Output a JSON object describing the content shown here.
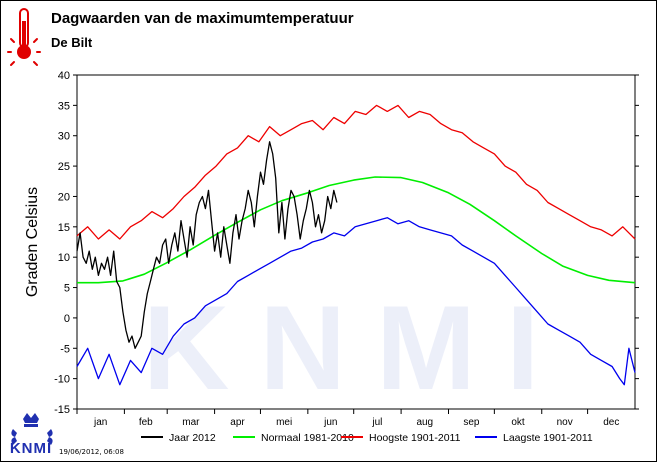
{
  "page": {
    "title": "Dagwaarden van de maximumtemperatuur",
    "subtitle": "De Bilt",
    "timestamp": "19/06/2012, 06:08",
    "logo_text": "KNMI",
    "watermark": "KNMI"
  },
  "chart_data": {
    "type": "line",
    "title": "Dagwaarden van de maximumtemperatuur",
    "subtitle": "De Bilt",
    "ylabel": "Graden Celsius",
    "xlabel": "",
    "ylim": [
      -15,
      40
    ],
    "yticks": [
      -15,
      -10,
      -5,
      0,
      5,
      10,
      15,
      20,
      25,
      30,
      35,
      40
    ],
    "xlim": [
      1,
      366
    ],
    "months": [
      "jan",
      "feb",
      "mar",
      "apr",
      "mei",
      "jun",
      "jul",
      "aug",
      "sep",
      "okt",
      "nov",
      "dec"
    ],
    "month_starts": [
      1,
      32,
      60,
      91,
      121,
      152,
      182,
      213,
      244,
      274,
      305,
      335
    ],
    "grid": false,
    "legend_position": "bottom",
    "series": [
      {
        "name": "Jaar 2012",
        "color": "#000000",
        "x": [
          1,
          3,
          5,
          7,
          9,
          11,
          13,
          15,
          17,
          19,
          21,
          23,
          25,
          27,
          29,
          31,
          33,
          35,
          37,
          39,
          41,
          43,
          45,
          47,
          49,
          51,
          53,
          55,
          57,
          59,
          61,
          63,
          65,
          67,
          69,
          71,
          73,
          75,
          77,
          79,
          81,
          83,
          85,
          87,
          89,
          91,
          93,
          95,
          97,
          99,
          101,
          103,
          105,
          107,
          109,
          111,
          113,
          115,
          117,
          119,
          121,
          123,
          125,
          127,
          129,
          131,
          133,
          135,
          137,
          139,
          141,
          143,
          145,
          147,
          149,
          151,
          153,
          155,
          157,
          159,
          161,
          163,
          165,
          167,
          169,
          171
        ],
        "values": [
          11,
          14,
          10,
          9,
          11,
          8,
          10,
          7,
          9,
          8,
          10,
          7,
          11,
          6,
          5,
          1,
          -2,
          -4,
          -3,
          -5,
          -4,
          -3,
          1,
          4,
          6,
          8,
          10,
          9,
          12,
          13,
          9,
          12,
          14,
          11,
          16,
          13,
          10,
          15,
          12,
          17,
          19,
          20,
          18,
          21,
          16,
          11,
          14,
          10,
          15,
          12,
          9,
          14,
          17,
          13,
          16,
          18,
          21,
          19,
          15,
          20,
          24,
          22,
          26,
          29,
          27,
          23,
          14,
          19,
          13,
          18,
          21,
          20,
          17,
          13,
          16,
          18,
          21,
          19,
          15,
          17,
          14,
          16,
          20,
          18,
          21,
          19
        ]
      },
      {
        "name": "Normaal 1981-2010",
        "color": "#00ee00",
        "x": [
          1,
          15,
          31,
          45,
          59,
          75,
          91,
          105,
          121,
          135,
          152,
          166,
          182,
          196,
          213,
          227,
          244,
          258,
          274,
          288,
          305,
          319,
          335,
          349,
          366
        ],
        "values": [
          5.8,
          5.8,
          6.1,
          7.2,
          9.0,
          11.2,
          13.6,
          15.6,
          17.8,
          19.3,
          20.6,
          21.8,
          22.7,
          23.2,
          23.1,
          22.3,
          20.6,
          18.7,
          16.0,
          13.5,
          10.6,
          8.5,
          7.0,
          6.2,
          5.8
        ]
      },
      {
        "name": "Hoogste 1901-2011",
        "color": "#ee0000",
        "x": [
          1,
          8,
          15,
          22,
          29,
          36,
          43,
          50,
          57,
          64,
          71,
          78,
          85,
          92,
          99,
          106,
          113,
          120,
          127,
          134,
          141,
          148,
          155,
          162,
          169,
          176,
          183,
          190,
          197,
          204,
          211,
          218,
          225,
          232,
          239,
          246,
          253,
          260,
          267,
          274,
          281,
          288,
          295,
          302,
          309,
          316,
          323,
          330,
          337,
          344,
          351,
          358,
          362,
          366
        ],
        "values": [
          13.5,
          15,
          13,
          14.5,
          13,
          15,
          16,
          17.5,
          16.5,
          18,
          20,
          21.5,
          23.5,
          25,
          27,
          28,
          30,
          29,
          31.5,
          30,
          31,
          32,
          32.5,
          31,
          33,
          32,
          34,
          33.5,
          35,
          34,
          35,
          33,
          34,
          33.5,
          32,
          31,
          30.5,
          29,
          28,
          27,
          25,
          24,
          22,
          21,
          19,
          18,
          17,
          16,
          15,
          14.5,
          13.5,
          15,
          14,
          13
        ]
      },
      {
        "name": "Laagste 1901-2011",
        "color": "#0000ee",
        "x": [
          1,
          8,
          15,
          22,
          29,
          36,
          43,
          50,
          57,
          64,
          71,
          78,
          85,
          92,
          99,
          106,
          113,
          120,
          127,
          134,
          141,
          148,
          155,
          162,
          169,
          176,
          183,
          190,
          197,
          204,
          211,
          218,
          225,
          232,
          239,
          246,
          253,
          260,
          267,
          274,
          281,
          288,
          295,
          302,
          309,
          316,
          323,
          330,
          337,
          344,
          351,
          356,
          359,
          362,
          366
        ],
        "values": [
          -8,
          -5,
          -10,
          -6,
          -11,
          -7,
          -9,
          -5,
          -6,
          -3,
          -1,
          0,
          2,
          3,
          4,
          6,
          7,
          8,
          9,
          10,
          11,
          11.5,
          12.5,
          13,
          14,
          13.5,
          15,
          15.5,
          16,
          16.5,
          15.5,
          16,
          15,
          14.5,
          14,
          13.5,
          12,
          11,
          10,
          9,
          7,
          5,
          3,
          1,
          -1,
          -2,
          -3,
          -4,
          -6,
          -7,
          -8,
          -10,
          -11,
          -5,
          -9
        ]
      }
    ]
  }
}
